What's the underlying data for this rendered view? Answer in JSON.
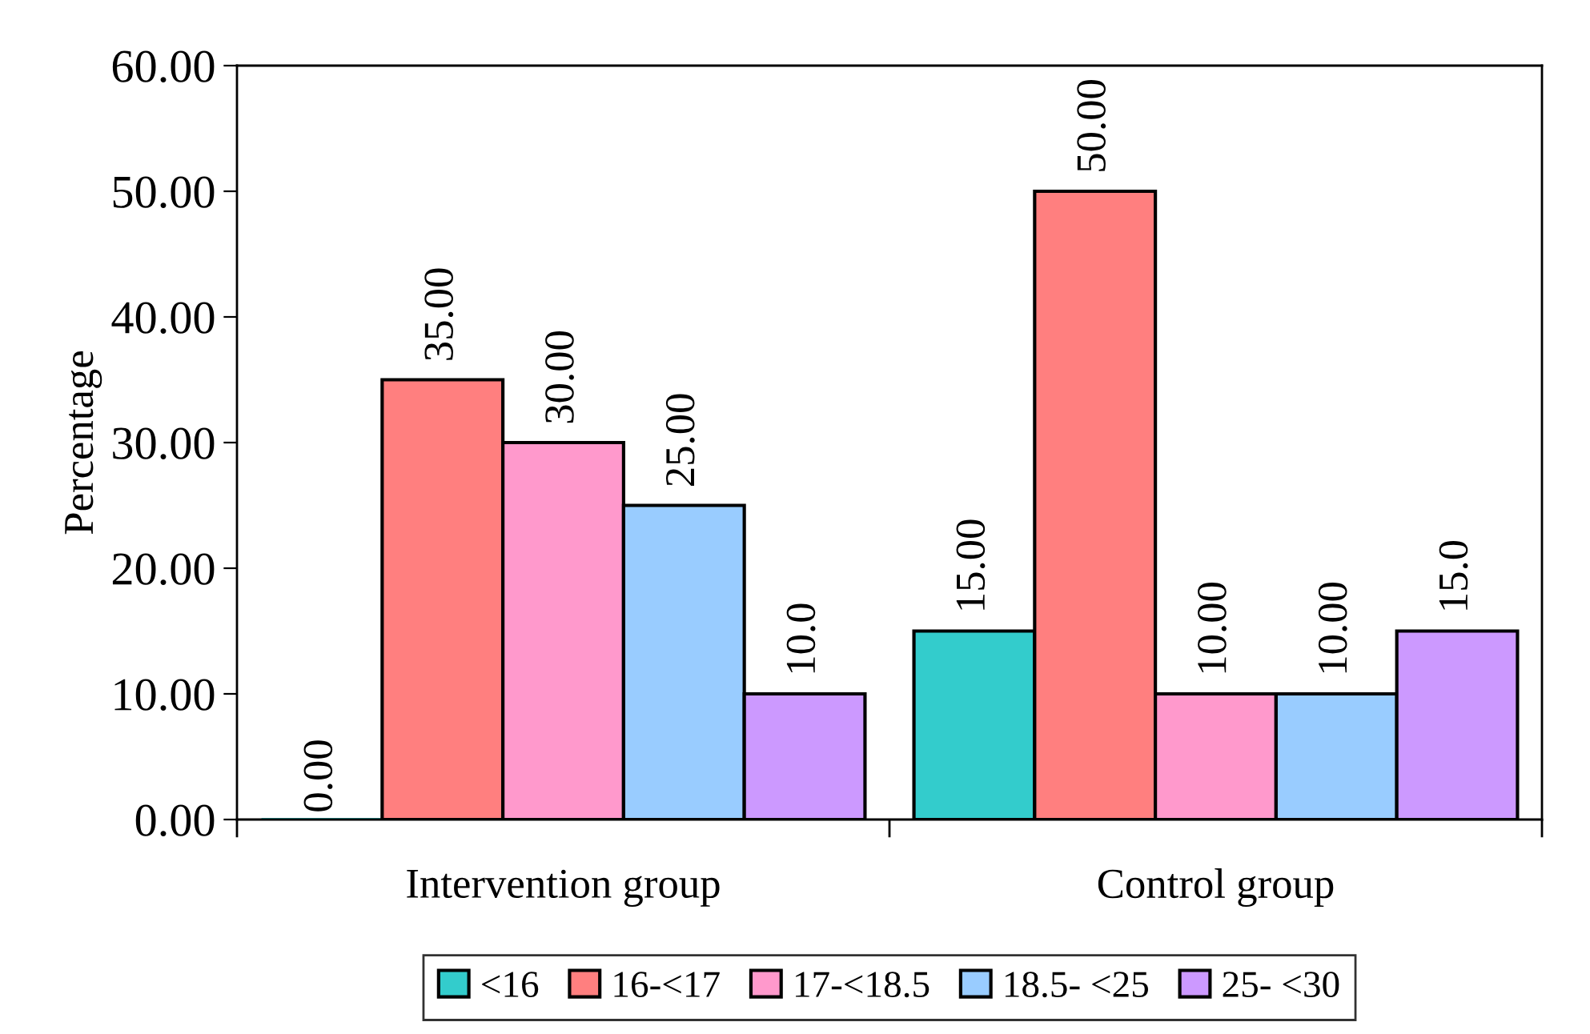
{
  "chart_data": {
    "type": "bar",
    "ylabel": "Percentage",
    "categories": [
      "Intervention group",
      "Control group"
    ],
    "series": [
      {
        "name": "<16",
        "color": "#33cccc",
        "values": [
          0,
          15
        ],
        "value_labels": [
          "0.00",
          "15.00"
        ]
      },
      {
        "name": "16-<17",
        "color": "#ff7f7f",
        "values": [
          35,
          50
        ],
        "value_labels": [
          "35.00",
          "50.00"
        ]
      },
      {
        "name": "17-<18.5",
        "color": "#ff99cc",
        "values": [
          30,
          10
        ],
        "value_labels": [
          "30.00",
          "10.00"
        ]
      },
      {
        "name": "18.5- <25",
        "color": "#99ccff",
        "values": [
          25,
          10
        ],
        "value_labels": [
          "25.00",
          "10.00"
        ]
      },
      {
        "name": "25- <30",
        "color": "#cc99ff",
        "values": [
          10,
          15
        ],
        "value_labels": [
          "10.0",
          "15.0"
        ]
      }
    ],
    "ylim": [
      0,
      60
    ],
    "yticks": [
      {
        "value": 0,
        "label": "0.00"
      },
      {
        "value": 10,
        "label": "10.00"
      },
      {
        "value": 20,
        "label": "20.00"
      },
      {
        "value": 30,
        "label": "30.00"
      },
      {
        "value": 40,
        "label": "40.00"
      },
      {
        "value": 50,
        "label": "50.00"
      },
      {
        "value": 60,
        "label": "60.00"
      }
    ],
    "grid": false,
    "legend": "bottom"
  }
}
